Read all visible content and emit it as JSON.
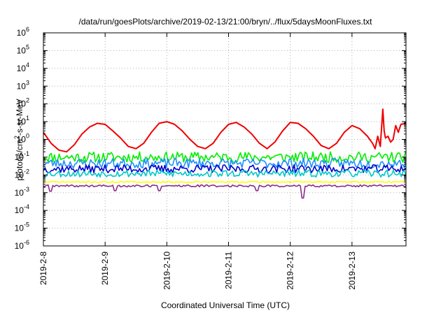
{
  "chart_data": {
    "type": "line",
    "title": "/data/run/goesPlots/archive/2019-02-13/21:00/bryn/../flux/5daysMoonFluxes.txt",
    "xlabel": "Coordinated Universal Time (UTC)",
    "ylabel_main": "protons/cm",
    "ylabel_sup": "2",
    "ylabel_rest": "-s-sr-MeV",
    "yscale": "log",
    "ylim_exp": [
      -6,
      6
    ],
    "y_ticks": [
      {
        "base": "10",
        "exp": "6",
        "value_exp": 6
      },
      {
        "base": "10",
        "exp": "5",
        "value_exp": 5
      },
      {
        "base": "10",
        "exp": "4",
        "value_exp": 4
      },
      {
        "base": "10",
        "exp": "3",
        "value_exp": 3
      },
      {
        "base": "10",
        "exp": "2",
        "value_exp": 2
      },
      {
        "base": "10",
        "exp": "1",
        "value_exp": 1
      },
      {
        "base": "10",
        "exp": "0",
        "value_exp": 0
      },
      {
        "base": "10",
        "exp": "-1",
        "value_exp": -1
      },
      {
        "base": "10",
        "exp": "-2",
        "value_exp": -2
      },
      {
        "base": "10",
        "exp": "-3",
        "value_exp": -3
      },
      {
        "base": "10",
        "exp": "-4",
        "value_exp": -4
      },
      {
        "base": "10",
        "exp": "-5",
        "value_exp": -5
      },
      {
        "base": "10",
        "exp": "-6",
        "value_exp": -6
      }
    ],
    "xlim": [
      "2019-02-08",
      "2019-02-13 21:00"
    ],
    "x_ticks": [
      {
        "label": "2019-2-8",
        "date": "2019-02-08"
      },
      {
        "label": "2019-2-9",
        "date": "2019-02-09"
      },
      {
        "label": "2019-2-10",
        "date": "2019-02-10"
      },
      {
        "label": "2019-2-11",
        "date": "2019-02-11"
      },
      {
        "label": "2019-2-12",
        "date": "2019-02-12"
      },
      {
        "label": "2019-2-13",
        "date": "2019-02-13"
      }
    ],
    "grid": true,
    "series": [
      {
        "color": "#ee0000",
        "points": [
          [
            "2019-02-08 00:00",
            2.5
          ],
          [
            "2019-02-08 03:00",
            0.6
          ],
          [
            "2019-02-08 06:00",
            0.25
          ],
          [
            "2019-02-08 09:00",
            0.2
          ],
          [
            "2019-02-08 12:00",
            0.5
          ],
          [
            "2019-02-08 15:00",
            2
          ],
          [
            "2019-02-08 18:00",
            5
          ],
          [
            "2019-02-08 21:00",
            8
          ],
          [
            "2019-02-09 00:00",
            7
          ],
          [
            "2019-02-09 03:00",
            3
          ],
          [
            "2019-02-09 06:00",
            1.2
          ],
          [
            "2019-02-09 09:00",
            0.4
          ],
          [
            "2019-02-09 12:00",
            0.3
          ],
          [
            "2019-02-09 15:00",
            0.6
          ],
          [
            "2019-02-09 18:00",
            2.5
          ],
          [
            "2019-02-09 21:00",
            8
          ],
          [
            "2019-02-10 00:00",
            10
          ],
          [
            "2019-02-10 03:00",
            7
          ],
          [
            "2019-02-10 06:00",
            3
          ],
          [
            "2019-02-10 09:00",
            1
          ],
          [
            "2019-02-10 12:00",
            0.4
          ],
          [
            "2019-02-10 15:00",
            0.3
          ],
          [
            "2019-02-10 18:00",
            0.6
          ],
          [
            "2019-02-10 21:00",
            2.5
          ],
          [
            "2019-02-11 00:00",
            7
          ],
          [
            "2019-02-11 03:00",
            9
          ],
          [
            "2019-02-11 06:00",
            5
          ],
          [
            "2019-02-11 09:00",
            2
          ],
          [
            "2019-02-11 12:00",
            0.6
          ],
          [
            "2019-02-11 15:00",
            0.3
          ],
          [
            "2019-02-11 18:00",
            0.7
          ],
          [
            "2019-02-11 21:00",
            3
          ],
          [
            "2019-02-12 00:00",
            9
          ],
          [
            "2019-02-12 03:00",
            8
          ],
          [
            "2019-02-12 06:00",
            4
          ],
          [
            "2019-02-12 09:00",
            1.5
          ],
          [
            "2019-02-12 12:00",
            0.45
          ],
          [
            "2019-02-12 15:00",
            0.3
          ],
          [
            "2019-02-12 18:00",
            0.6
          ],
          [
            "2019-02-12 21:00",
            2.5
          ],
          [
            "2019-02-13 00:00",
            6
          ],
          [
            "2019-02-13 03:00",
            4
          ],
          [
            "2019-02-13 06:00",
            1.5
          ],
          [
            "2019-02-13 08:00",
            0.6
          ],
          [
            "2019-02-13 09:00",
            0.3
          ],
          [
            "2019-02-13 10:00",
            1.5
          ],
          [
            "2019-02-13 11:00",
            0.4
          ],
          [
            "2019-02-13 12:00",
            50
          ],
          [
            "2019-02-13 12:30",
            3
          ],
          [
            "2019-02-13 13:00",
            1.2
          ],
          [
            "2019-02-13 14:00",
            1.5
          ],
          [
            "2019-02-13 15:00",
            0.7
          ],
          [
            "2019-02-13 16:00",
            1
          ],
          [
            "2019-02-13 17:00",
            6
          ],
          [
            "2019-02-13 18:00",
            2.5
          ],
          [
            "2019-02-13 19:00",
            7
          ],
          [
            "2019-02-13 21:00",
            8
          ]
        ]
      },
      {
        "color": "#00ee00",
        "base": 0.1,
        "amp": 0.6,
        "seed": 11
      },
      {
        "color": "#1e90ff",
        "base": 0.045,
        "amp": 0.55,
        "seed": 23
      },
      {
        "color": "#0000cc",
        "base": 0.022,
        "amp": 0.45,
        "seed": 37
      },
      {
        "color": "#00c8c8",
        "base": 0.012,
        "amp": 0.4,
        "seed": 53
      },
      {
        "color": "#ffff00",
        "base": 0.004,
        "amp": 0.08,
        "seed": 71
      },
      {
        "color": "#8b2c8b",
        "base": 0.0024,
        "amp": 0.12,
        "seed": 89,
        "dips": [
          [
            "2019-02-08 03:00",
            0.0012
          ],
          [
            "2019-02-09 04:00",
            0.0013
          ],
          [
            "2019-02-09 21:00",
            0.0013
          ],
          [
            "2019-02-11 11:00",
            0.0013
          ],
          [
            "2019-02-12 05:00",
            0.0005
          ]
        ]
      }
    ]
  }
}
